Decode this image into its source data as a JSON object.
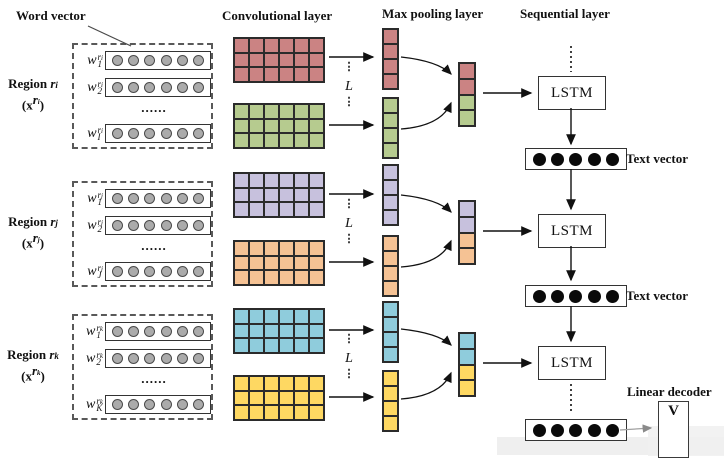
{
  "headers": {
    "word_vector": "Word vector",
    "convolutional": "Convolutional layer",
    "max_pooling": "Max pooling layer",
    "sequential": "Sequential layer"
  },
  "regions": [
    {
      "region_word": "Region",
      "region_var": "r",
      "region_idx": "i",
      "input_open": "(",
      "input_base": "x",
      "input_sup_base": "r",
      "input_sup_idx": "i",
      "input_close": ")",
      "dots": "......",
      "rows": [
        {
          "base": "w",
          "sub": "1",
          "sup_base": "r",
          "sup_idx": "i"
        },
        {
          "base": "w",
          "sub": "2",
          "sup_base": "r",
          "sup_idx": "i"
        },
        {
          "dots": "......"
        },
        {
          "base": "w",
          "sub": "I",
          "sup_base": "r",
          "sup_idx": "i"
        }
      ],
      "circles_per_row": 6
    },
    {
      "region_word": "Region",
      "region_var": "r",
      "region_idx": "j",
      "input_open": "(",
      "input_base": "x",
      "input_sup_base": "r",
      "input_sup_idx": "j",
      "input_close": ")",
      "dots": "......",
      "rows": [
        {
          "base": "w",
          "sub": "1",
          "sup_base": "r",
          "sup_idx": "j"
        },
        {
          "base": "w",
          "sub": "2",
          "sup_base": "r",
          "sup_idx": "j"
        },
        {
          "dots": "......"
        },
        {
          "base": "w",
          "sub": "J",
          "sup_base": "r",
          "sup_idx": "j"
        }
      ],
      "circles_per_row": 6
    },
    {
      "region_word": "Region",
      "region_var": "r",
      "region_idx": "k",
      "input_open": "(",
      "input_base": "x",
      "input_sup_base": "r",
      "input_sup_idx": "k",
      "input_close": ")",
      "dots": "......",
      "rows": [
        {
          "base": "w",
          "sub": "1",
          "sup_base": "r",
          "sup_idx": "k"
        },
        {
          "base": "w",
          "sub": "2",
          "sup_base": "r",
          "sup_idx": "k"
        },
        {
          "dots": "......"
        },
        {
          "base": "w",
          "sub": "K",
          "sup_base": "r",
          "sup_idx": "k"
        }
      ],
      "circles_per_row": 6
    }
  ],
  "conv": {
    "filter_label": "L",
    "vdots": "⋮",
    "grid_cols": 6,
    "grid_rows": 3,
    "pool_cells": 4,
    "merge_cells_per_color": 2,
    "pairs": [
      {
        "name": "region-i",
        "colors": [
          "#cb8383",
          "#b6cb8f"
        ]
      },
      {
        "name": "region-j",
        "colors": [
          "#c7c1dd",
          "#f5c294"
        ]
      },
      {
        "name": "region-k",
        "colors": [
          "#8fccdc",
          "#fed862"
        ]
      }
    ]
  },
  "sequential": {
    "lstm_label": "LSTM",
    "lstm_count": 3,
    "text_vector_label": "Text vector",
    "text_vector_units": 5
  },
  "decoder": {
    "label": "Linear decoder",
    "matrix": "V"
  },
  "colors": {
    "word_circle": "#ababab",
    "text_vector_circle": "#0a0a0a",
    "stroke": "#2b2b2b"
  }
}
